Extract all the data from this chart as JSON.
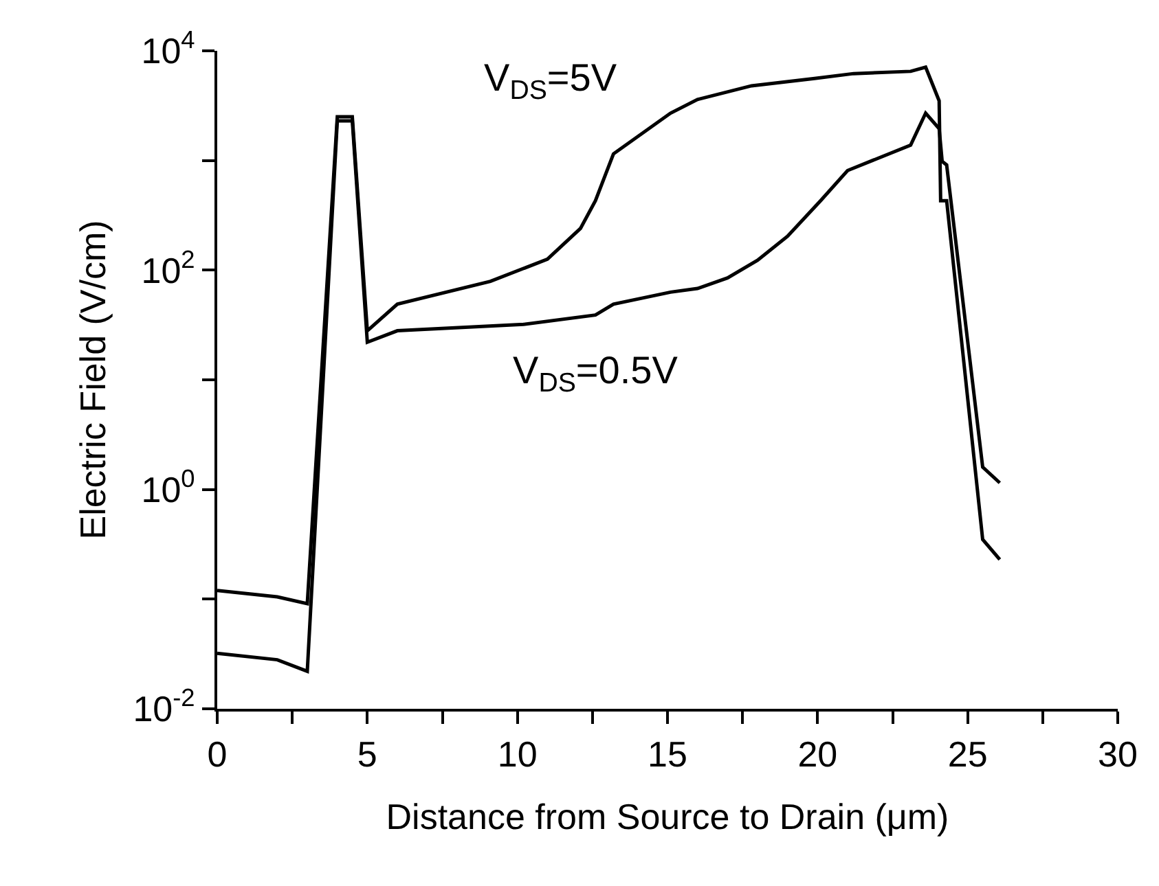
{
  "chart_data": {
    "type": "line",
    "xlabel": "Distance from Source to Drain (μm)",
    "ylabel": "Electric Field (V/cm)",
    "log": "y",
    "marker": "none",
    "line_style": "solid",
    "xlim": [
      0,
      30
    ],
    "xticks": [
      0,
      {
        "value": 2.5,
        "label": null
      },
      5,
      {
        "value": 7.5,
        "label": null
      },
      10,
      {
        "value": 12.5,
        "label": null
      },
      15,
      {
        "value": 17.5,
        "label": null
      },
      20,
      {
        "value": 22.5,
        "label": null
      },
      25,
      {
        "value": 27.5,
        "label": null
      },
      30
    ],
    "ylim": [
      0.01,
      10000
    ],
    "yticks": [
      {
        "value": 0.01,
        "label": "10$^{-2}$"
      },
      {
        "value": 0.1,
        "label": null
      },
      {
        "value": 1,
        "label": "10$^{0}$"
      },
      {
        "value": 10,
        "label": null
      },
      {
        "value": 100,
        "label": "10$^{2}$"
      },
      {
        "value": 1000,
        "label": null
      },
      {
        "value": 10000,
        "label": "10$^{4}$"
      }
    ],
    "series": [
      {
        "color": "#000000",
        "x": [
          0,
          2,
          3,
          4,
          4.5,
          5,
          6,
          9.1,
          11,
          12.1,
          12.6,
          13.2,
          15.1,
          16,
          17.8,
          19.9,
          21.2,
          23.1,
          23.6,
          24.05,
          24.1,
          24.3,
          25.5,
          26.07
        ],
        "values": [
          0.12,
          0.105,
          0.091,
          2500,
          2500,
          28,
          49,
          79,
          126,
          240,
          430,
          1150,
          2700,
          3600,
          4800,
          5600,
          6200,
          6500,
          7100,
          3500,
          430,
          430,
          0.35,
          0.23
        ]
      },
      {
        "color": "#000000",
        "x": [
          0,
          2,
          3,
          4,
          4.5,
          5,
          6,
          10.2,
          12.6,
          13.2,
          15.1,
          16,
          17,
          18,
          19,
          20.1,
          21,
          23.1,
          23.6,
          24.05,
          24.15,
          24.3,
          25.5,
          26.07
        ],
        "values": [
          0.032,
          0.028,
          0.022,
          2300,
          2300,
          22,
          28,
          32,
          39,
          49,
          63,
          68,
          85,
          123,
          204,
          430,
          810,
          1380,
          2700,
          1950,
          980,
          910,
          1.6,
          1.15
        ]
      }
    ],
    "annotations": [
      "V$_{DS}$=5V",
      "V$_{DS}$=0.5V"
    ]
  }
}
